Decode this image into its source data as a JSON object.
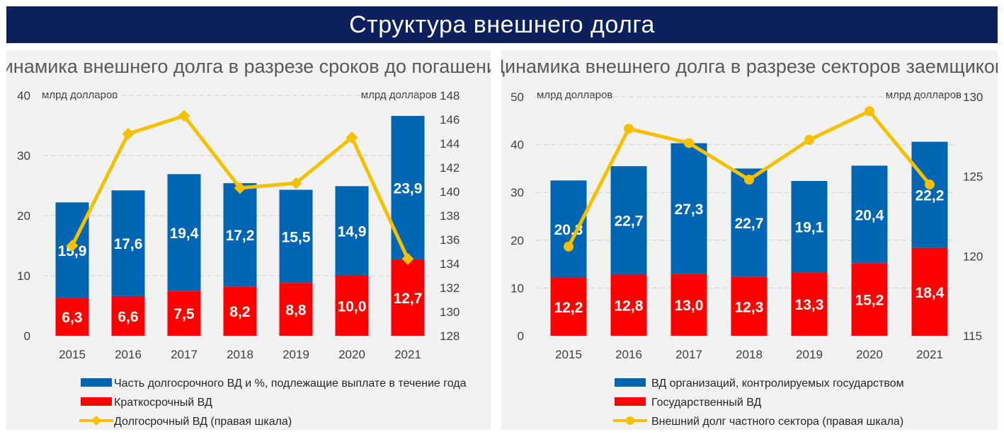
{
  "banner": {
    "title": "Структура внешнего долга"
  },
  "colors": {
    "banner": "#0d1f5c",
    "blue": "#0066b3",
    "red": "#ff0000",
    "yellow": "#f5c000",
    "panel": "#f2f2f2"
  },
  "chart_data": [
    {
      "type": "bar",
      "stacked": true,
      "title": "Динамика внешнего долга в разрезе сроков до погашения",
      "ylabel_left": "млрд долларов",
      "ylabel_right": "млрд долларов",
      "categories": [
        "2015",
        "2016",
        "2017",
        "2018",
        "2019",
        "2020",
        "2021"
      ],
      "ylim_left": [
        0,
        40
      ],
      "yticks_left": [
        0,
        10,
        20,
        30,
        40
      ],
      "ylim_right": [
        128,
        148
      ],
      "yticks_right": [
        128,
        130,
        132,
        134,
        136,
        138,
        140,
        142,
        144,
        146,
        148
      ],
      "grid": true,
      "legend_position": "bottom",
      "series": [
        {
          "name": "Часть долгосрочного ВД и %, подлежащие выплате в течение года",
          "type": "bar",
          "color": "#0066b3",
          "values": [
            15.9,
            17.6,
            19.4,
            17.2,
            15.5,
            14.9,
            23.9
          ],
          "labels": [
            "15,9",
            "17,6",
            "19,4",
            "17,2",
            "15,5",
            "14,9",
            "23,9"
          ]
        },
        {
          "name": "Краткосрочный ВД",
          "type": "bar",
          "color": "#ff0000",
          "values": [
            6.3,
            6.6,
            7.5,
            8.2,
            8.8,
            10.0,
            12.7
          ],
          "labels": [
            "6,3",
            "6,6",
            "7,5",
            "8,2",
            "8,8",
            "10,0",
            "12,7"
          ]
        },
        {
          "name": "Долгосрочный ВД (правая шкала)",
          "type": "line",
          "axis": "right",
          "color": "#f5c000",
          "values": [
            135.5,
            144.8,
            146.3,
            140.3,
            140.7,
            144.5,
            134.4
          ]
        }
      ]
    },
    {
      "type": "bar",
      "stacked": true,
      "title": "Динамика внешнего долга в разрезе секторов заемщиков",
      "ylabel_left": "млрд долларов",
      "ylabel_right": "млрд долларов",
      "categories": [
        "2015",
        "2016",
        "2017",
        "2018",
        "2019",
        "2020",
        "2021"
      ],
      "ylim_left": [
        0,
        50
      ],
      "yticks_left": [
        0,
        10,
        20,
        30,
        40,
        50
      ],
      "ylim_right": [
        115,
        130
      ],
      "yticks_right": [
        115,
        120,
        125,
        130
      ],
      "grid": true,
      "legend_position": "bottom",
      "series": [
        {
          "name": "ВД организаций, контролируемых государством",
          "type": "bar",
          "color": "#0066b3",
          "values": [
            20.3,
            22.7,
            27.3,
            22.7,
            19.1,
            20.4,
            22.2
          ],
          "labels": [
            "20,3",
            "22,7",
            "27,3",
            "22,7",
            "19,1",
            "20,4",
            "22,2"
          ]
        },
        {
          "name": "Государственный ВД",
          "type": "bar",
          "color": "#ff0000",
          "values": [
            12.2,
            12.8,
            13.0,
            12.3,
            13.3,
            15.2,
            18.4
          ],
          "labels": [
            "12,2",
            "12,8",
            "13,0",
            "12,3",
            "13,3",
            "15,2",
            "18,4"
          ]
        },
        {
          "name": "Внешний долг частного сектора (правая шкала)",
          "type": "line",
          "axis": "right",
          "color": "#f5c000",
          "values": [
            120.6,
            128.0,
            127.1,
            124.8,
            127.3,
            129.1,
            124.5
          ]
        }
      ]
    }
  ]
}
